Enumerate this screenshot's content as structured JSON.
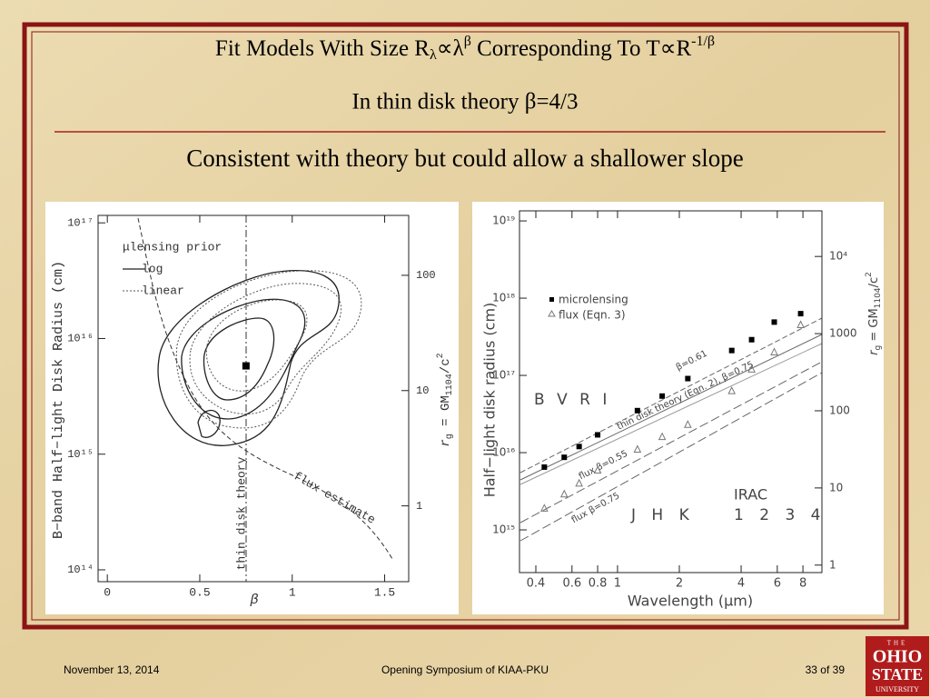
{
  "slide": {
    "title": [
      "Fit Models With Size R",
      "λ",
      "∝λ",
      "β",
      " Corresponding To T∝R",
      "-1/β"
    ],
    "subtitle": "In thin disk theory β=4/3",
    "headline": "Consistent with theory but could allow a shallower slope",
    "footer": {
      "date": "November 13, 2014",
      "event": "Opening Symposium of KIAA-PKU",
      "page": "33 of 39"
    },
    "logo": [
      "THE",
      "OHIO",
      "STATE",
      "UNIVERSITY"
    ]
  },
  "chart_data": [
    {
      "type": "contour",
      "ylabel": "B−band Half−light Disk Radius (cm)",
      "xlabel": "β",
      "y2label": [
        "r",
        "g",
        " = GM",
        "1104",
        "/c",
        "2"
      ],
      "xlim": [
        -0.05,
        1.63
      ],
      "xticks": [
        0,
        0.5,
        1,
        1.5
      ],
      "ylim": [
        79000000000000.0,
        1.16e+17
      ],
      "ylog": true,
      "yticks": [
        {
          "value": 100000000000000.0,
          "label": "10¹⁴"
        },
        {
          "value": 1000000000000000.0,
          "label": "10¹⁵"
        },
        {
          "value": 1e+16,
          "label": "10¹⁶"
        },
        {
          "value": 1e+17,
          "label": "10¹⁷"
        }
      ],
      "y2lim": [
        0.22,
        331
      ],
      "y2log": true,
      "y2ticks": [
        1,
        10,
        100
      ],
      "legend": [
        "μlensing prior",
        "log",
        "linear"
      ],
      "annotations": [
        "thin disk theory",
        "flux estimate"
      ],
      "x": [
        0.75
      ],
      "values": [
        5800000000000000.0
      ],
      "color": "#000000"
    },
    {
      "type": "scatter",
      "ylabel": "Half−light disk radius (cm)",
      "xlabel": "Wavelength (μm)",
      "y2label": [
        "r",
        "g",
        " = GM",
        "1104",
        "/c",
        "2"
      ],
      "xlim": [
        0.333,
        9.9
      ],
      "xlog": true,
      "xticks": [
        0.4,
        0.6,
        0.8,
        1,
        2,
        4,
        6,
        8
      ],
      "ylim": [
        280000000000000.0,
        1.35e+19
      ],
      "ylog": true,
      "yticks": [
        {
          "value": 1000000000000000.0,
          "label": "10¹⁵"
        },
        {
          "value": 1e+16,
          "label": "10¹⁶"
        },
        {
          "value": 1e+17,
          "label": "10¹⁷"
        },
        {
          "value": 1e+18,
          "label": "10¹⁸"
        },
        {
          "value": 1e+19,
          "label": "10¹⁹"
        }
      ],
      "y2lim": [
        0.8,
        39000
      ],
      "y2log": true,
      "y2ticks": [
        1,
        10,
        100,
        1000,
        {
          "value": 10000,
          "label": "10⁴"
        }
      ],
      "x": [
        0.44,
        0.55,
        0.65,
        0.8,
        1.25,
        1.65,
        2.2,
        3.6,
        4.5,
        5.8,
        7.8
      ],
      "series": [
        {
          "name": "microlensing",
          "color": "#000000",
          "values": [
            6500000000000000.0,
            8700000000000000.0,
            1.2e+16,
            1.7e+16,
            3.5e+16,
            5.4e+16,
            9.1e+16,
            2.1e+17,
            2.9e+17,
            4.9e+17,
            6.3e+17
          ]
        },
        {
          "name": "flux (Eqn. 3)",
          "color": "#777777",
          "values": [
            1900000000000000.0,
            2900000000000000.0,
            4000000000000000.0,
            5900000000000000.0,
            1.1e+16,
            1.6e+16,
            2.3e+16,
            6.3e+16,
            1.2e+17,
            2e+17,
            4.5e+17
          ]
        }
      ],
      "line_labels": [
        "β=0.61",
        "thin disk theory (Eqn. 2), β=0.75",
        "flux β=0.55",
        "flux β=0.75"
      ],
      "band_labels": [
        "B V R I",
        "J H K",
        "IRAC",
        "1 2 3 4"
      ]
    }
  ]
}
